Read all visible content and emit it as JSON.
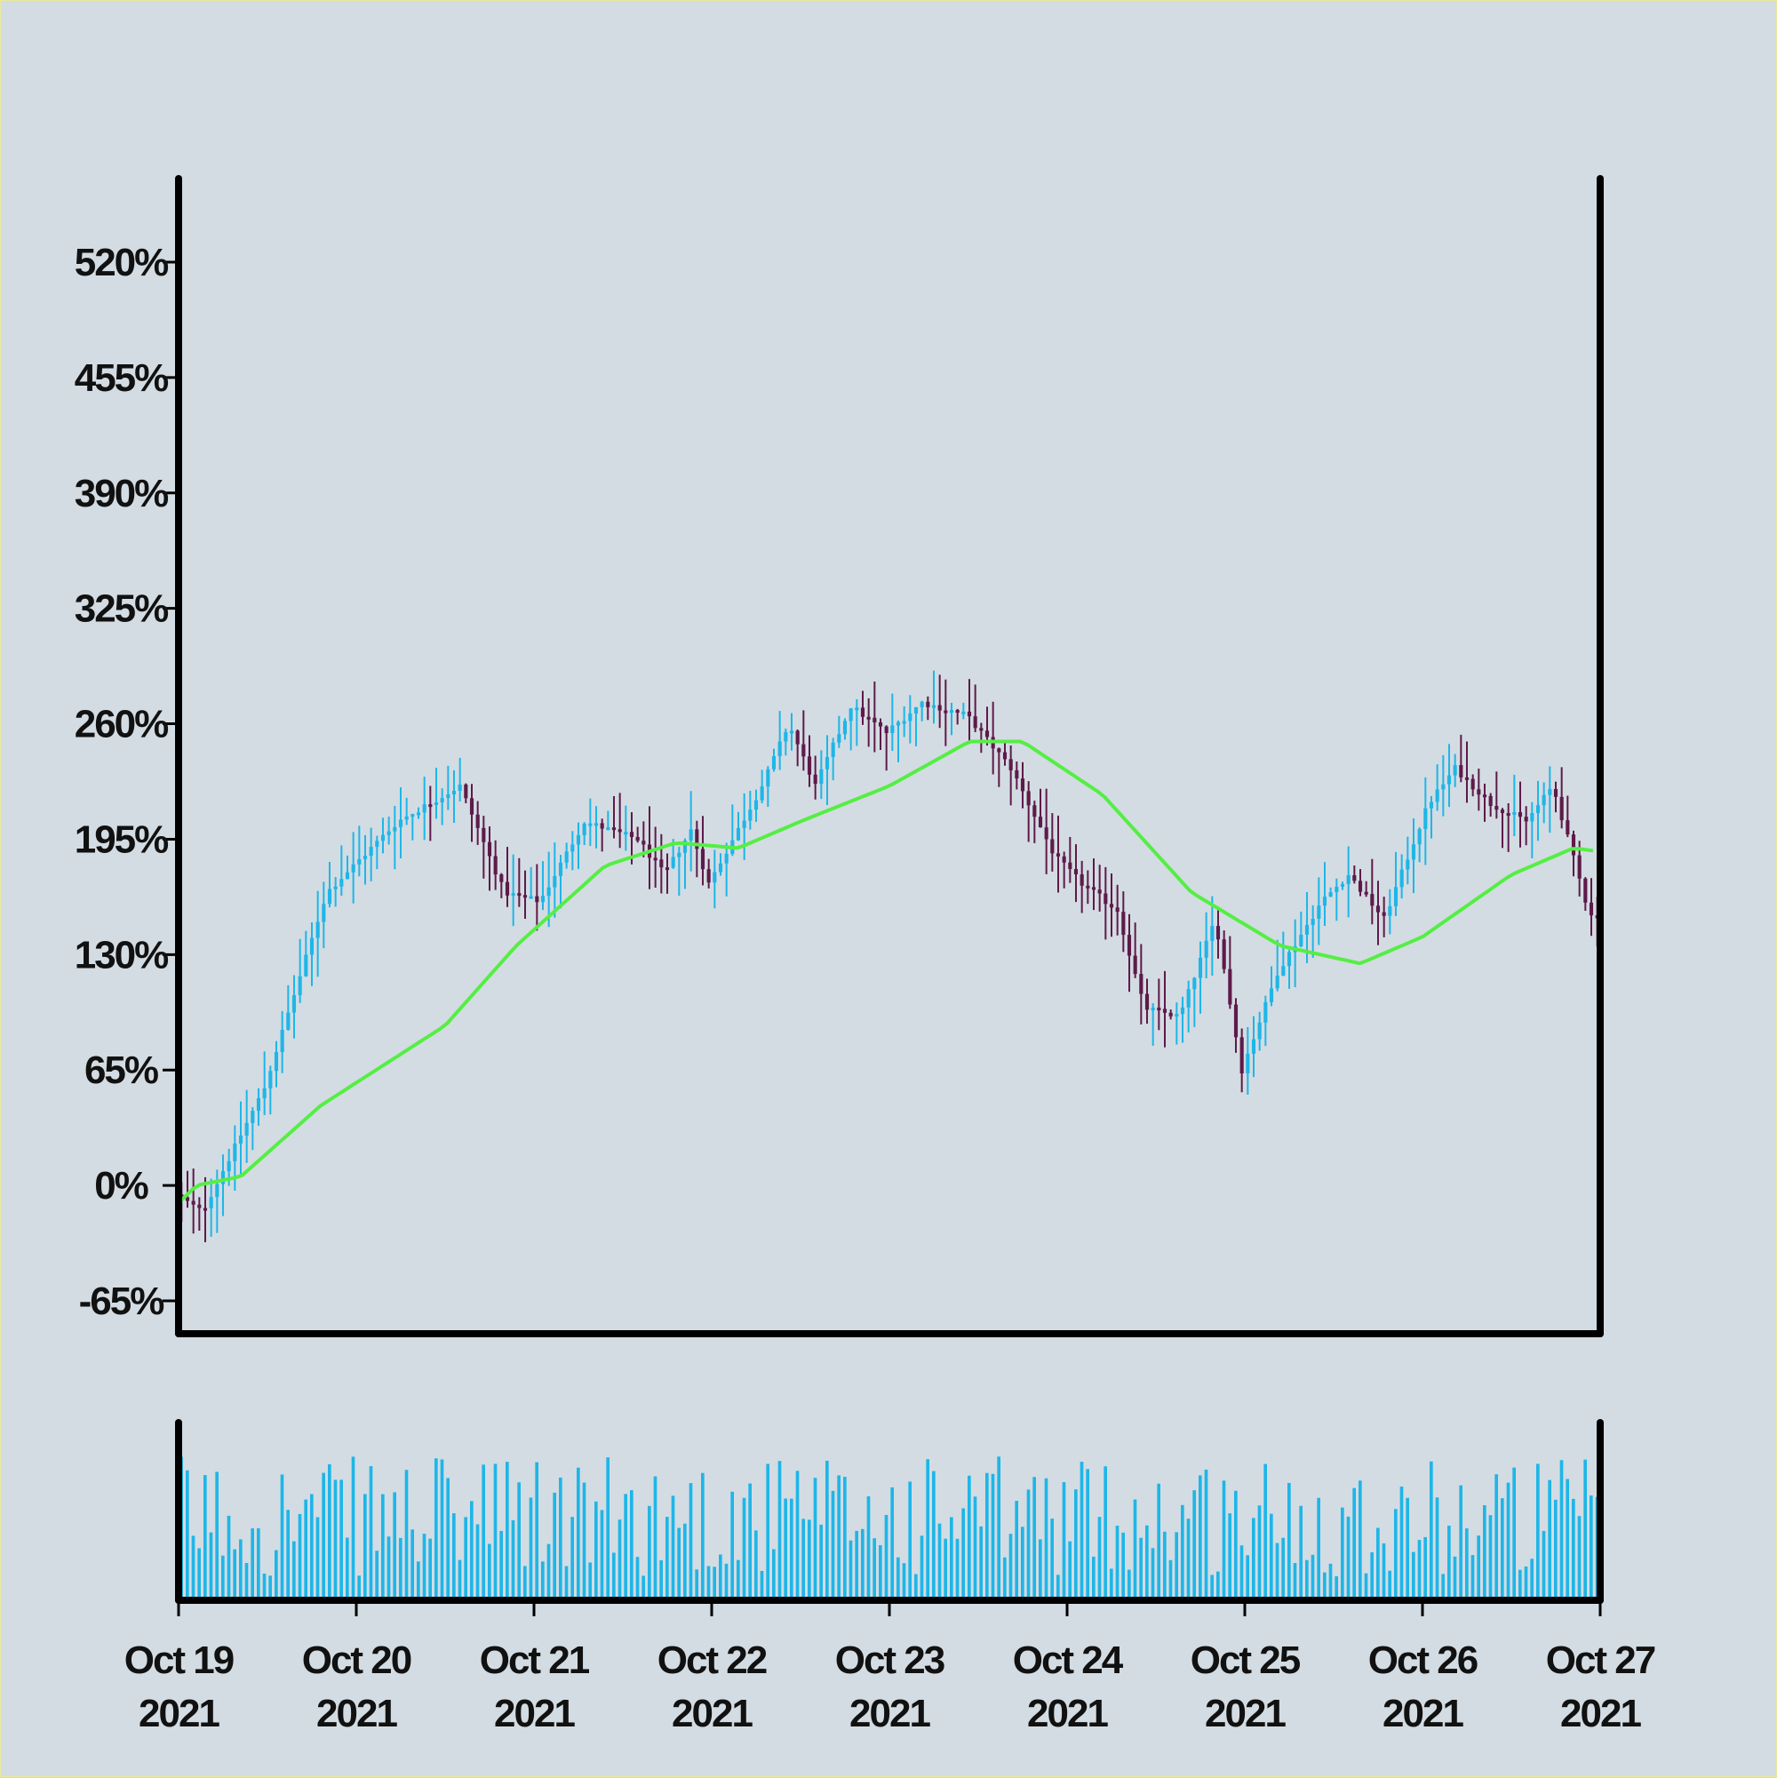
{
  "chart_data": {
    "type": "candlestick",
    "title": "",
    "xlabel": "",
    "ylabel": "",
    "x_tick_labels": [
      {
        "line1": "Oct 19",
        "line2": "2021",
        "day": 0
      },
      {
        "line1": "Oct 20",
        "line2": "2021",
        "day": 1
      },
      {
        "line1": "Oct 21",
        "line2": "2021",
        "day": 2
      },
      {
        "line1": "Oct 22",
        "line2": "2021",
        "day": 3
      },
      {
        "line1": "Oct 23",
        "line2": "2021",
        "day": 4
      },
      {
        "line1": "Oct 24",
        "line2": "2021",
        "day": 5
      },
      {
        "line1": "Oct 25",
        "line2": "2021",
        "day": 6
      },
      {
        "line1": "Oct 26",
        "line2": "2021",
        "day": 7
      },
      {
        "line1": "Oct 27",
        "line2": "2021",
        "day": 8
      }
    ],
    "y_ticks": [
      -65,
      0,
      65,
      130,
      195,
      260,
      325,
      390,
      455,
      520
    ],
    "y_tick_labels": [
      "-65%",
      "0%",
      "65%",
      "130%",
      "195%",
      "260%",
      "325%",
      "390%",
      "455%",
      "520%"
    ],
    "ylim": [
      -85,
      570
    ],
    "xlim_days": [
      0,
      8
    ],
    "grid": false,
    "legend": "none",
    "colors": {
      "up": "#1eb6e8",
      "down": "#5e1a4a",
      "moving_average": "#55ee44",
      "volume": "#1eb6e8",
      "axis": "#000000",
      "background": "#d3dce2"
    },
    "price_path_keypoints": [
      {
        "day": 0.0,
        "close": -5
      },
      {
        "day": 0.15,
        "close": -15
      },
      {
        "day": 0.5,
        "close": 55
      },
      {
        "day": 0.85,
        "close": 165
      },
      {
        "day": 1.25,
        "close": 205
      },
      {
        "day": 1.6,
        "close": 225
      },
      {
        "day": 1.85,
        "close": 165
      },
      {
        "day": 2.05,
        "close": 160
      },
      {
        "day": 2.3,
        "close": 205
      },
      {
        "day": 2.6,
        "close": 195
      },
      {
        "day": 2.75,
        "close": 175
      },
      {
        "day": 2.9,
        "close": 200
      },
      {
        "day": 3.0,
        "close": 170
      },
      {
        "day": 3.3,
        "close": 225
      },
      {
        "day": 3.45,
        "close": 260
      },
      {
        "day": 3.6,
        "close": 225
      },
      {
        "day": 3.8,
        "close": 270
      },
      {
        "day": 4.0,
        "close": 255
      },
      {
        "day": 4.2,
        "close": 272
      },
      {
        "day": 4.45,
        "close": 265
      },
      {
        "day": 4.7,
        "close": 235
      },
      {
        "day": 4.95,
        "close": 185
      },
      {
        "day": 5.1,
        "close": 170
      },
      {
        "day": 5.3,
        "close": 155
      },
      {
        "day": 5.45,
        "close": 100
      },
      {
        "day": 5.65,
        "close": 95
      },
      {
        "day": 5.85,
        "close": 150
      },
      {
        "day": 6.0,
        "close": 65
      },
      {
        "day": 6.2,
        "close": 120
      },
      {
        "day": 6.45,
        "close": 160
      },
      {
        "day": 6.6,
        "close": 175
      },
      {
        "day": 6.8,
        "close": 150
      },
      {
        "day": 7.05,
        "close": 215
      },
      {
        "day": 7.2,
        "close": 235
      },
      {
        "day": 7.4,
        "close": 215
      },
      {
        "day": 7.6,
        "close": 205
      },
      {
        "day": 7.75,
        "close": 225
      },
      {
        "day": 7.95,
        "close": 155
      },
      {
        "day": 8.0,
        "close": 150
      }
    ],
    "moving_average": [
      {
        "day": 0.0,
        "close": -10
      },
      {
        "day": 0.1,
        "close": 0
      },
      {
        "day": 0.35,
        "close": 5
      },
      {
        "day": 0.8,
        "close": 45
      },
      {
        "day": 1.5,
        "close": 90
      },
      {
        "day": 1.9,
        "close": 135
      },
      {
        "day": 2.4,
        "close": 180
      },
      {
        "day": 2.8,
        "close": 193
      },
      {
        "day": 3.15,
        "close": 190
      },
      {
        "day": 3.5,
        "close": 205
      },
      {
        "day": 4.0,
        "close": 225
      },
      {
        "day": 4.45,
        "close": 250
      },
      {
        "day": 4.75,
        "close": 250
      },
      {
        "day": 5.2,
        "close": 220
      },
      {
        "day": 5.7,
        "close": 165
      },
      {
        "day": 6.2,
        "close": 135
      },
      {
        "day": 6.65,
        "close": 125
      },
      {
        "day": 7.0,
        "close": 140
      },
      {
        "day": 7.5,
        "close": 175
      },
      {
        "day": 7.85,
        "close": 190
      },
      {
        "day": 8.0,
        "close": 188
      }
    ]
  }
}
